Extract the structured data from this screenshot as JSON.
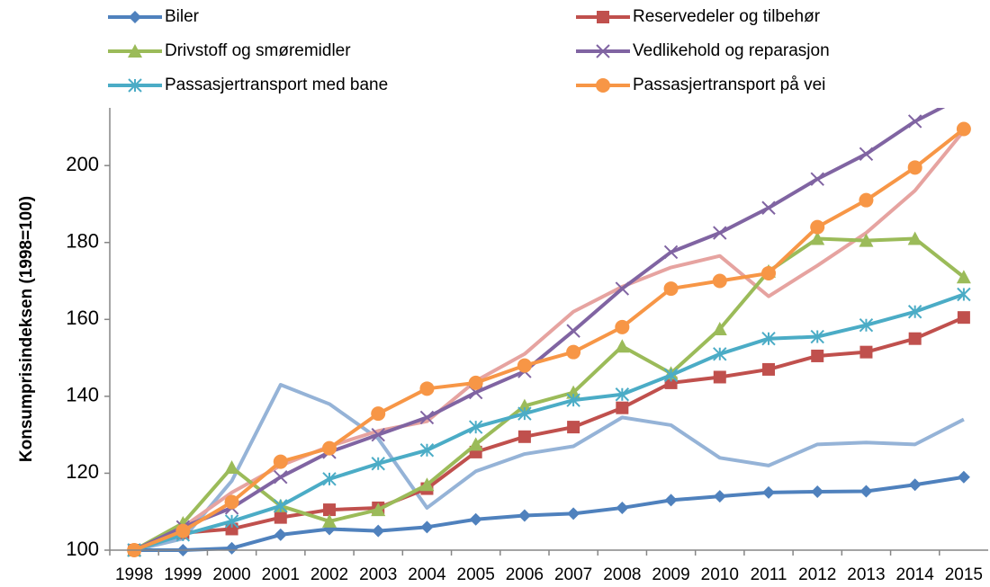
{
  "chart_data": {
    "type": "line",
    "y_label": "Konsumprisindeksen (1998=100)",
    "categories": [
      "1998",
      "1999",
      "2000",
      "2001",
      "2002",
      "2003",
      "2004",
      "2005",
      "2006",
      "2007",
      "2008",
      "2009",
      "2010",
      "2011",
      "2012",
      "2013",
      "2014",
      "2015"
    ],
    "ylim": [
      100,
      215
    ],
    "yticks": [
      100,
      120,
      140,
      160,
      180,
      200
    ],
    "grid": false,
    "series": [
      {
        "name": "Biler",
        "color": "#4f81bd",
        "marker": "diamond",
        "values": [
          100,
          100,
          100.5,
          104,
          105.5,
          105,
          106,
          108,
          109,
          109.5,
          111,
          113,
          114,
          115,
          115.2,
          115.3,
          117,
          119
        ]
      },
      {
        "name": "Reservedeler og tilbehør",
        "color": "#c0504d",
        "marker": "square",
        "values": [
          100,
          104.5,
          105.5,
          108.5,
          110.5,
          111,
          116,
          125.5,
          129.5,
          132,
          137,
          143.5,
          145,
          147,
          150.5,
          151.5,
          155,
          160.5
        ]
      },
      {
        "name": "Drivstoff og smøremidler",
        "color": "#9bbb59",
        "marker": "triangle",
        "values": [
          100,
          107,
          121.5,
          111.5,
          107.5,
          110.5,
          117,
          127.5,
          137.5,
          141,
          153,
          146,
          157.5,
          172.5,
          181,
          180.5,
          181,
          171
        ]
      },
      {
        "name": "Vedlikehold og reparasjon",
        "color": "#8064a2",
        "marker": "x",
        "values": [
          100,
          106,
          111,
          119,
          125.5,
          130,
          134.5,
          141,
          146.5,
          157,
          168,
          177.5,
          182.5,
          189,
          196.5,
          203,
          211.5,
          218
        ]
      },
      {
        "name": "Passasjertransport med bane",
        "color": "#4bacc6",
        "marker": "asterisk",
        "values": [
          100,
          104,
          107.5,
          111.5,
          118.5,
          122.5,
          126,
          132,
          135.5,
          139,
          140.5,
          145.5,
          151,
          155,
          155.5,
          158.5,
          162,
          166.5
        ]
      },
      {
        "name": "Passasjertransport på vei",
        "color": "#f79646",
        "marker": "circle",
        "values": [
          100,
          105,
          112.5,
          123,
          126.5,
          135.5,
          142,
          143.5,
          148,
          151.5,
          158,
          168,
          170,
          172,
          184,
          191,
          199.5,
          209.5
        ]
      },
      {
        "color": "#95b3d7",
        "values": [
          100,
          103,
          118,
          143,
          138,
          129,
          111,
          120.5,
          125,
          127,
          134.5,
          132.5,
          124,
          122,
          127.5,
          128,
          127.5,
          134
        ]
      },
      {
        "color": "#e6a3a0",
        "values": [
          100,
          106,
          115,
          122,
          127,
          131,
          133.5,
          144,
          151,
          162,
          168.5,
          173.5,
          176.5,
          166,
          174,
          182.5,
          193.5,
          209
        ]
      }
    ]
  }
}
